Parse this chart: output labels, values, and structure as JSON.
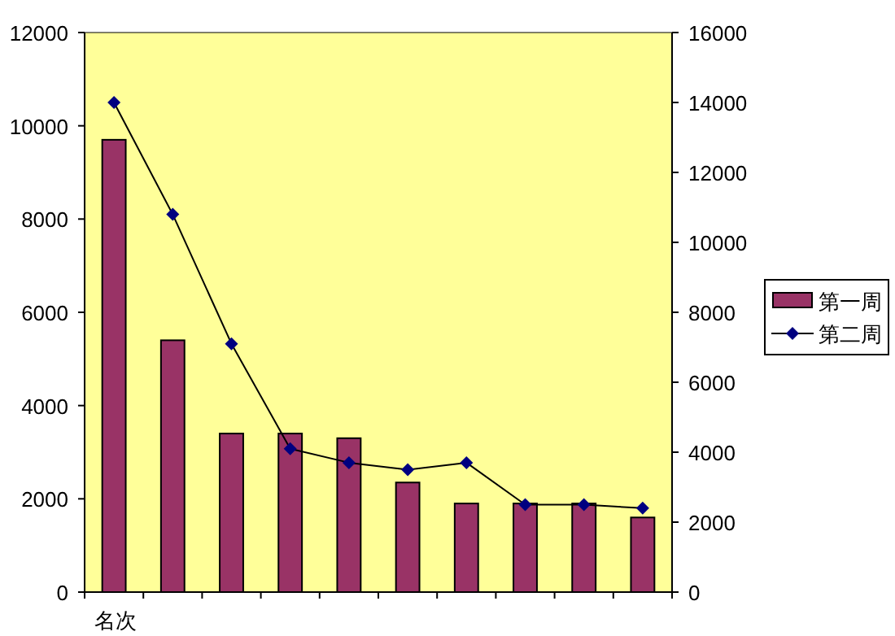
{
  "chart_data": {
    "type": "bar",
    "xlabel": "名次",
    "categories": [
      null,
      null,
      null,
      null,
      null,
      null,
      null,
      null,
      null,
      null
    ],
    "series": [
      {
        "name": "第一周",
        "color": "#993366",
        "values": [
          9700,
          5400,
          3400,
          3400,
          3300,
          2350,
          1900,
          1900,
          1900,
          1600
        ]
      },
      {
        "name": "第二周",
        "type": "line",
        "axis": "y2",
        "color": "#000080",
        "values": [
          14000,
          10800,
          7100,
          4100,
          3700,
          3500,
          3700,
          2500,
          2500,
          2400
        ]
      }
    ],
    "ylim": [
      0,
      12000
    ],
    "yticks": [
      0,
      2000,
      4000,
      6000,
      8000,
      10000,
      12000
    ],
    "y2lim": [
      0,
      16000
    ],
    "y2ticks": [
      0,
      2000,
      4000,
      6000,
      8000,
      10000,
      12000,
      14000,
      16000
    ],
    "marker": "diamond",
    "line_style": "solid",
    "grid": false,
    "legend": "right"
  }
}
